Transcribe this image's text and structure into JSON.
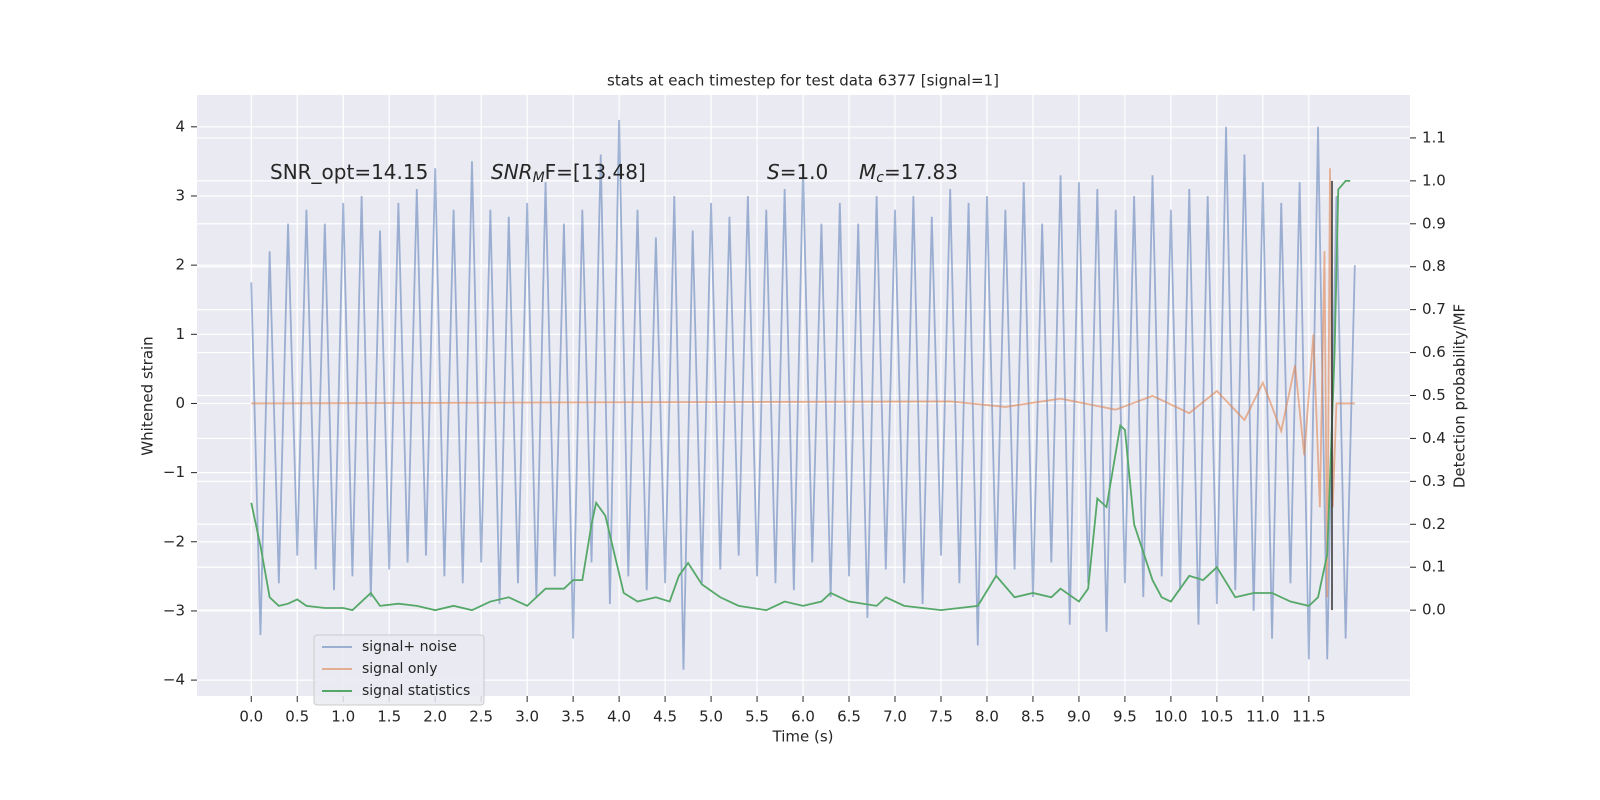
{
  "chart_data": {
    "type": "line",
    "title": "stats at each timestep for test data 6377 [signal=1]",
    "xlabel": "Time (s)",
    "ylabel": "Whitened strain",
    "y2label": "Detection probability/MF",
    "annotations": [
      {
        "text": "SNR_opt=14.15"
      },
      {
        "text": "SNR",
        "sub": "M",
        "rest": "F=[13.48]"
      },
      {
        "text": "S",
        "rest": "=1.0"
      },
      {
        "text": "M",
        "sub": "c",
        "rest": "=17.83"
      }
    ],
    "xlim": [
      -0.59,
      12.6
    ],
    "ylim": [
      -4.23,
      4.46
    ],
    "y2lim": [
      -0.2,
      1.2
    ],
    "xticks": [
      {
        "value": 0,
        "label": "0.0"
      },
      0.5,
      {
        "value": 1,
        "label": "1.0"
      },
      1.5,
      {
        "value": 2,
        "label": "2.0"
      },
      2.5,
      {
        "value": 3,
        "label": "3.0"
      },
      3.5,
      {
        "value": 4,
        "label": "4.0"
      },
      4.5,
      {
        "value": 5,
        "label": "5.0"
      },
      5.5,
      {
        "value": 6,
        "label": "6.0"
      },
      6.5,
      {
        "value": 7,
        "label": "7.0"
      },
      7.5,
      {
        "value": 8,
        "label": "8.0"
      },
      8.5,
      {
        "value": 9,
        "label": "9.0"
      },
      9.5,
      {
        "value": 10,
        "label": "10.0"
      },
      10.5,
      {
        "value": 11,
        "label": "11.0"
      },
      11.5
    ],
    "yticks": [
      {
        "value": -4,
        "label": "−4"
      },
      {
        "value": -3,
        "label": "−3"
      },
      {
        "value": -2,
        "label": "−2"
      },
      {
        "value": -1,
        "label": "−1"
      },
      0,
      1,
      2,
      3,
      4
    ],
    "y2ticks": [
      {
        "value": 0,
        "label": "0.0"
      },
      0.1,
      0.2,
      0.3,
      0.4,
      0.5,
      0.6,
      0.7,
      0.8,
      0.9,
      {
        "value": 1,
        "label": "1.0"
      },
      1.1
    ],
    "grid": true,
    "legend": "lower left",
    "series": [
      {
        "name": "signal+ noise",
        "color": "#4c72b0",
        "x": [
          0,
          0.1,
          0.2,
          0.3,
          0.4,
          0.5,
          0.6,
          0.7,
          0.8,
          0.9,
          1,
          1.1,
          1.2,
          1.3,
          1.4,
          1.5,
          1.6,
          1.7,
          1.8,
          1.9,
          2,
          2.1,
          2.2,
          2.3,
          2.4,
          2.5,
          2.6,
          2.7,
          2.8,
          2.9,
          3,
          3.1,
          3.2,
          3.3,
          3.4,
          3.5,
          3.6,
          3.7,
          3.8,
          3.9,
          4,
          4.1,
          4.2,
          4.3,
          4.4,
          4.5,
          4.6,
          4.7,
          4.8,
          4.9,
          5,
          5.1,
          5.2,
          5.3,
          5.4,
          5.5,
          5.6,
          5.7,
          5.8,
          5.9,
          6,
          6.1,
          6.2,
          6.3,
          6.4,
          6.5,
          6.6,
          6.7,
          6.8,
          6.9,
          7,
          7.1,
          7.2,
          7.3,
          7.4,
          7.5,
          7.6,
          7.7,
          7.8,
          7.9,
          8,
          8.1,
          8.2,
          8.3,
          8.4,
          8.5,
          8.6,
          8.7,
          8.8,
          8.9,
          9,
          9.1,
          9.2,
          9.3,
          9.4,
          9.5,
          9.6,
          9.7,
          9.8,
          9.9,
          10,
          10.1,
          10.2,
          10.3,
          10.4,
          10.5,
          10.6,
          10.7,
          10.8,
          10.9,
          11,
          11.1,
          11.2,
          11.3,
          11.4,
          11.5,
          11.6,
          11.7,
          11.8,
          11.9,
          12
        ],
        "values": [
          1.75,
          -3.35,
          2.2,
          -2.6,
          2.6,
          -2.2,
          2.8,
          -2.4,
          2.6,
          -2.7,
          2.9,
          -2.5,
          3.0,
          -2.8,
          2.5,
          -2.4,
          2.9,
          -2.3,
          3.1,
          -2.2,
          3.4,
          -2.5,
          2.8,
          -2.6,
          3.5,
          -2.3,
          2.8,
          -2.9,
          2.7,
          -2.6,
          2.9,
          -2.8,
          3.2,
          -2.5,
          2.6,
          -3.4,
          2.8,
          -2.3,
          3.6,
          -2.9,
          4.1,
          -2.5,
          2.8,
          -2.7,
          2.4,
          -2.6,
          3.0,
          -3.85,
          2.5,
          -2.6,
          2.9,
          -2.4,
          2.7,
          -2.2,
          3.0,
          -2.5,
          2.8,
          -2.6,
          3.1,
          -2.7,
          3.4,
          -2.3,
          2.6,
          -2.8,
          2.9,
          -2.5,
          2.6,
          -3.1,
          3.0,
          -2.4,
          2.8,
          -2.6,
          3.0,
          -2.9,
          2.7,
          -2.2,
          3.1,
          -2.6,
          2.9,
          -3.5,
          3.0,
          -2.5,
          2.8,
          -2.4,
          3.2,
          -2.8,
          2.6,
          -2.3,
          3.3,
          -3.2,
          3.2,
          -2.6,
          3.1,
          -3.3,
          2.8,
          -2.6,
          3.0,
          -2.8,
          3.3,
          -2.5,
          2.8,
          -2.7,
          3.1,
          -3.2,
          3.0,
          -2.9,
          4.0,
          -2.7,
          3.6,
          -3.0,
          3.2,
          -3.4,
          2.9,
          -2.6,
          3.2,
          -3.7,
          4.0,
          -3.7,
          3.0,
          -3.4,
          2.0
        ]
      },
      {
        "name": "signal only",
        "color": "#dd8452",
        "x": [
          0,
          7.6,
          8.2,
          8.8,
          9.4,
          9.8,
          10.2,
          10.5,
          10.8,
          11.0,
          11.2,
          11.35,
          11.45,
          11.55,
          11.62,
          11.67,
          11.7,
          11.73,
          11.76,
          11.8,
          12.0
        ],
        "values": [
          0,
          0.03,
          -0.05,
          0.07,
          -0.09,
          0.11,
          -0.14,
          0.18,
          -0.24,
          0.3,
          -0.4,
          0.55,
          -0.75,
          1.0,
          -1.5,
          2.2,
          -2.8,
          3.4,
          -1.5,
          0,
          0
        ]
      },
      {
        "name": "signal statistics",
        "color": "#55a868",
        "axis": "y2",
        "x": [
          0,
          0.1,
          0.2,
          0.3,
          0.4,
          0.5,
          0.6,
          0.8,
          1.0,
          1.1,
          1.2,
          1.3,
          1.4,
          1.6,
          1.8,
          2.0,
          2.2,
          2.4,
          2.6,
          2.8,
          3.0,
          3.2,
          3.4,
          3.5,
          3.6,
          3.7,
          3.75,
          3.85,
          3.95,
          4.05,
          4.2,
          4.4,
          4.55,
          4.65,
          4.75,
          4.9,
          5.1,
          5.3,
          5.6,
          5.8,
          6.0,
          6.2,
          6.3,
          6.5,
          6.8,
          6.9,
          7.1,
          7.5,
          7.9,
          8.1,
          8.3,
          8.5,
          8.7,
          8.8,
          9.0,
          9.1,
          9.2,
          9.3,
          9.45,
          9.5,
          9.6,
          9.8,
          9.9,
          10.0,
          10.2,
          10.35,
          10.5,
          10.7,
          10.9,
          11.1,
          11.3,
          11.5,
          11.6,
          11.7,
          11.78,
          11.82,
          11.9,
          11.95
        ],
        "values": [
          0.25,
          0.15,
          0.03,
          0.01,
          0.015,
          0.025,
          0.01,
          0.005,
          0.005,
          0.0,
          0.02,
          0.04,
          0.01,
          0.015,
          0.01,
          0.0,
          0.01,
          0.0,
          0.02,
          0.03,
          0.01,
          0.05,
          0.05,
          0.07,
          0.07,
          0.2,
          0.25,
          0.22,
          0.13,
          0.04,
          0.02,
          0.03,
          0.02,
          0.08,
          0.11,
          0.06,
          0.03,
          0.01,
          0.0,
          0.02,
          0.01,
          0.02,
          0.04,
          0.02,
          0.01,
          0.03,
          0.01,
          0.0,
          0.01,
          0.08,
          0.03,
          0.04,
          0.03,
          0.05,
          0.02,
          0.05,
          0.26,
          0.24,
          0.43,
          0.42,
          0.2,
          0.07,
          0.03,
          0.02,
          0.08,
          0.07,
          0.1,
          0.03,
          0.04,
          0.04,
          0.02,
          0.01,
          0.03,
          0.13,
          0.6,
          0.98,
          1.0,
          1.0
        ]
      }
    ]
  }
}
